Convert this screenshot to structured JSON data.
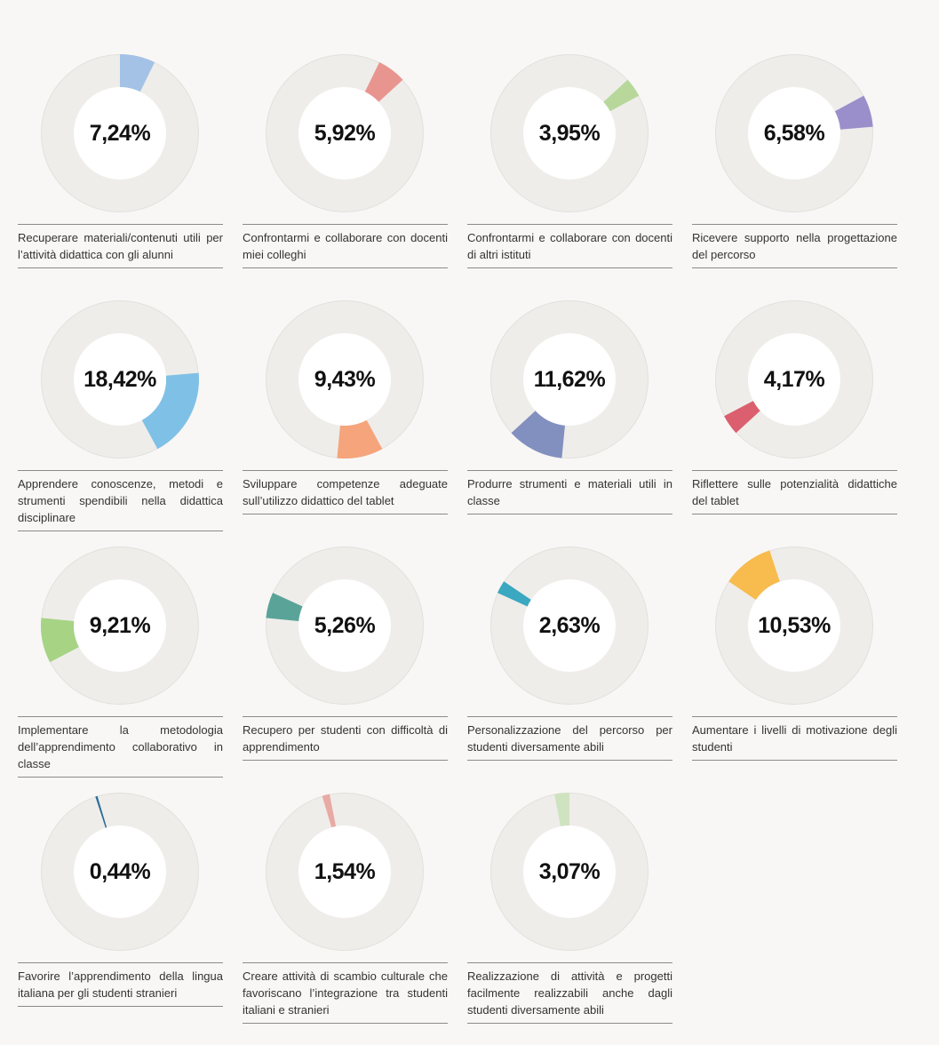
{
  "chart_data": [
    {
      "type": "pie",
      "label": "7,24%",
      "value": 7.24,
      "color": "#a4c2e6",
      "start_fraction": 0.0,
      "caption": "Recuperare materiali/contenuti utili per l’attività didattica con gli alunni"
    },
    {
      "type": "pie",
      "label": "5,92%",
      "value": 5.92,
      "color": "#e9958f",
      "start_fraction": 0.0724,
      "caption": "Confrontarmi e collaborare con docenti miei colleghi"
    },
    {
      "type": "pie",
      "label": "3,95%",
      "value": 3.95,
      "color": "#b7d89a",
      "start_fraction": 0.1316,
      "caption": "Confrontarmi e collaborare con docenti di altri istituti"
    },
    {
      "type": "pie",
      "label": "6,58%",
      "value": 6.58,
      "color": "#9b8fcb",
      "start_fraction": 0.1711,
      "caption": "Ricevere supporto nella progettazione del percorso"
    },
    {
      "type": "pie",
      "label": "18,42%",
      "value": 18.42,
      "color": "#7fc1e6",
      "start_fraction": 0.2369,
      "caption": "Apprendere conoscenze, metodi e strumenti spendibili nella didattica disciplinare"
    },
    {
      "type": "pie",
      "label": "9,43%",
      "value": 9.43,
      "color": "#f5a47c",
      "start_fraction": 0.4211,
      "caption": "Sviluppare competenze adeguate sull’utilizzo didattico del tablet"
    },
    {
      "type": "pie",
      "label": "11,62%",
      "value": 11.62,
      "color": "#8290c0",
      "start_fraction": 0.5154,
      "caption": "Produrre strumenti e materiali utili in classe"
    },
    {
      "type": "pie",
      "label": "4,17%",
      "value": 4.17,
      "color": "#db5f6e",
      "start_fraction": 0.6316,
      "caption": "Riflettere sulle potenzialità didattiche del tablet"
    },
    {
      "type": "pie",
      "label": "9,21%",
      "value": 9.21,
      "color": "#a7d385",
      "start_fraction": 0.6733,
      "caption": "Implementare la metodologia dell’apprendimento collaborativo in classe"
    },
    {
      "type": "pie",
      "label": "5,26%",
      "value": 5.26,
      "color": "#5aa398",
      "start_fraction": 0.7654,
      "caption": "Recupero per studenti con difficoltà di apprendimento"
    },
    {
      "type": "pie",
      "label": "2,63%",
      "value": 2.63,
      "color": "#3aa8c0",
      "start_fraction": 0.818,
      "caption": "Personalizzazione del percorso per studenti diversamente abili"
    },
    {
      "type": "pie",
      "label": "10,53%",
      "value": 10.53,
      "color": "#f8bb4e",
      "start_fraction": 0.8443,
      "caption": "Aumentare i livelli di motivazione degli studenti"
    },
    {
      "type": "pie",
      "label": "0,44%",
      "value": 0.44,
      "color": "#2d6e9a",
      "start_fraction": 0.9496,
      "caption": "Favorire l’apprendimento della lingua italiana per gli studenti stranieri"
    },
    {
      "type": "pie",
      "label": "1,54%",
      "value": 1.54,
      "color": "#e8aaa5",
      "start_fraction": 0.954,
      "caption": "Creare attività di scambio culturale che favoriscano l’integrazione tra studenti italiani e stranieri"
    },
    {
      "type": "pie",
      "label": "3,07%",
      "value": 3.07,
      "color": "#cfe3c0",
      "start_fraction": 0.9694,
      "caption": "Realizzazione di attività e progetti facilmente realizzabili anche dagli studenti diversamente abili"
    }
  ],
  "colors": {
    "ring_track": "#efedea",
    "ring_outline": "#e2e0dd",
    "inner_circle": "#ffffff",
    "background": "#f8f7f5"
  }
}
